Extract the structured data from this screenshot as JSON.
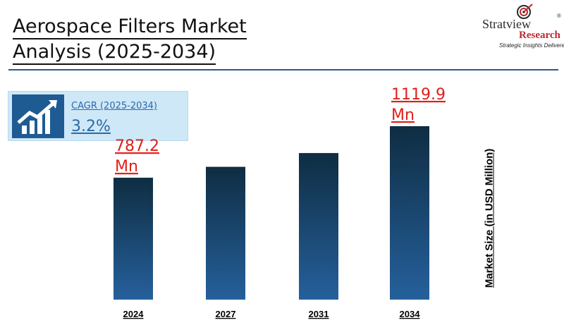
{
  "header": {
    "title_line1": "Aerospace Filters Market",
    "title_line2": "Analysis (2025-2034)"
  },
  "logo": {
    "brand": "Stratview",
    "sub": "Research",
    "tagline": "Strategic Insights Delivered",
    "reg": "®"
  },
  "cagr": {
    "label": "CAGR (2025-2034)",
    "value": "3.2%"
  },
  "colors": {
    "bar_top": "#0f2d42",
    "bar_bottom": "#25609c",
    "label_red": "#e0201b",
    "divider": "#2c5a84",
    "logo_red": "#c0272d"
  },
  "chart_data": {
    "type": "bar",
    "categories": [
      "2024",
      "2027",
      "2031",
      "2034"
    ],
    "values": [
      787.2,
      857.6,
      946.4,
      1119.9
    ],
    "data_labels": [
      [
        "787.2",
        "Mn"
      ],
      null,
      null,
      [
        "1119.9",
        "Mn"
      ]
    ],
    "ylabel": "Market Size (in  USD Million)",
    "ylim": [
      0,
      1200
    ],
    "grid": false,
    "legend": "none"
  }
}
